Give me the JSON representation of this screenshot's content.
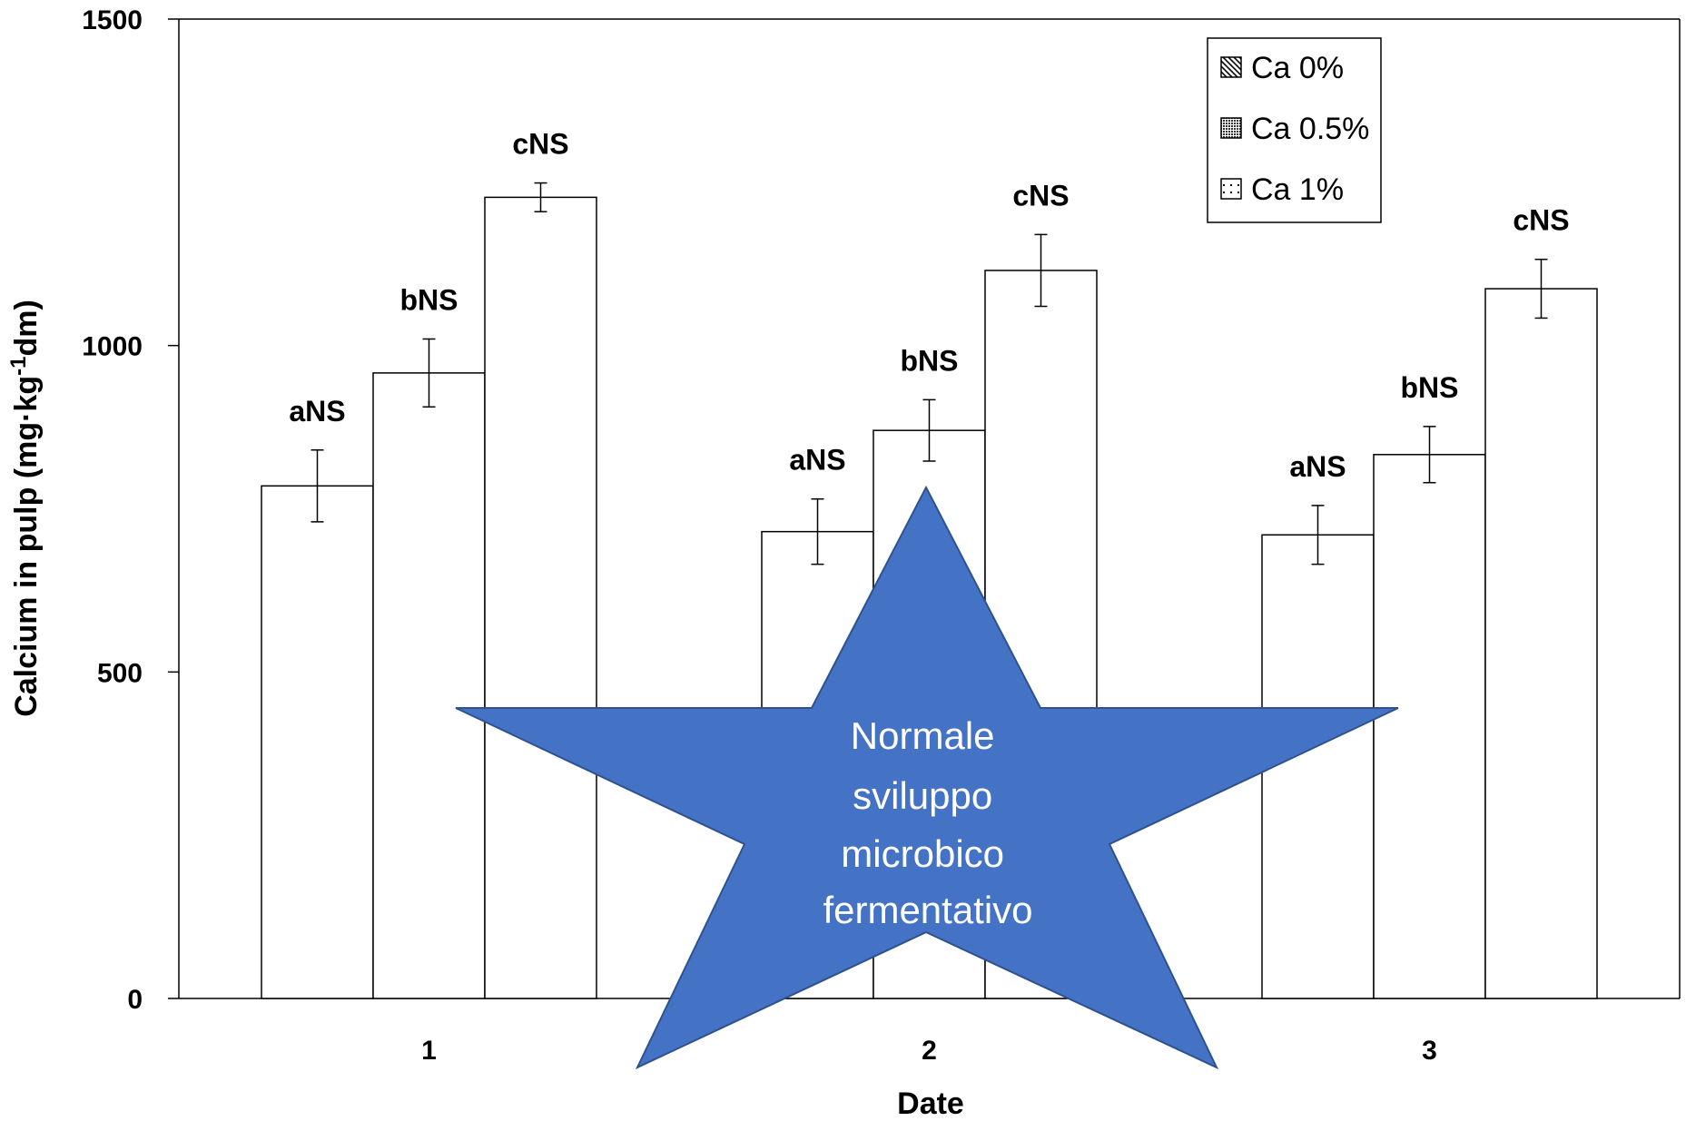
{
  "chart_data": {
    "type": "bar",
    "xlabel": "Date",
    "ylabel_main": "Calcium in pulp (mg·kg",
    "ylabel_sup": "-1",
    "ylabel_tail": "dm)",
    "ylim": [
      0,
      1500
    ],
    "yticks": [
      "0",
      "500",
      "1000",
      "1500"
    ],
    "categories": [
      "1",
      "2",
      "3"
    ],
    "legend_position": "top-right",
    "series": [
      {
        "name": "Ca 0%",
        "values": [
          785,
          715,
          710
        ],
        "errors": [
          55,
          50,
          45
        ],
        "labels": [
          "aNS",
          "aNS",
          "aNS"
        ],
        "swatch": "diagonal"
      },
      {
        "name": "Ca 0.5%",
        "values": [
          958,
          870,
          833
        ],
        "errors": [
          52,
          47,
          43
        ],
        "labels": [
          "bNS",
          "bNS",
          "bNS"
        ],
        "swatch": "dots-dense"
      },
      {
        "name": "Ca 1%",
        "values": [
          1227,
          1115,
          1087
        ],
        "errors": [
          22,
          55,
          45
        ],
        "labels": [
          "cNS",
          "cNS",
          "cNS"
        ],
        "swatch": "dots-sparse"
      }
    ],
    "bar_fill": "#ffffff",
    "bar_stroke": "#000000"
  },
  "overlay": {
    "shape": "star-icon",
    "color": "#4472C4",
    "border": "#2F528F",
    "text_lines": [
      "Normale",
      "sviluppo",
      "microbico",
      "fermentativo"
    ]
  }
}
